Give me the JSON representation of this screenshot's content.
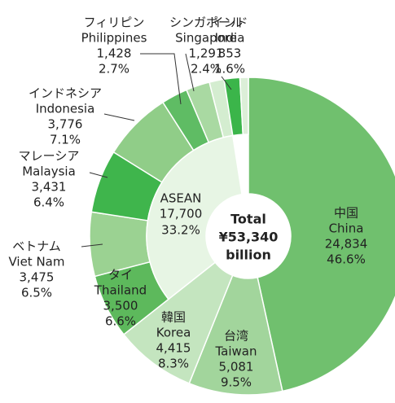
{
  "chart_data": {
    "type": "donut",
    "center_label": [
      "Total",
      "¥53,340",
      "billion"
    ],
    "categories_ja": [
      "中国",
      "台湾",
      "韓国",
      "タイ",
      "ベトナム",
      "マレーシア",
      "インドネシア",
      "フィリピン",
      "シンガポール",
      null,
      "インド",
      null
    ],
    "categories": [
      "China",
      "Taiwan",
      "Korea",
      "Thailand",
      "Viet Nam",
      "Malaysia",
      "Indonesia",
      "Philippines",
      "Singapore",
      null,
      "India",
      null
    ],
    "values": [
      24834,
      5081,
      4415,
      3500,
      3475,
      3431,
      3776,
      1428,
      1291,
      799,
      853,
      457
    ],
    "value_labels": [
      "24,834",
      "5,081",
      "4,415",
      "3,500",
      "3,475",
      "3,431",
      "3,776",
      "1,428",
      "1,291",
      null,
      "853",
      null
    ],
    "shares": [
      46.6,
      9.5,
      8.3,
      6.6,
      6.5,
      6.4,
      7.1,
      2.7,
      2.4,
      null,
      1.6,
      null
    ],
    "share_labels": [
      "46.6%",
      "9.5%",
      "8.3%",
      "6.6%",
      "6.5%",
      "6.4%",
      "7.1%",
      "2.7%",
      "2.4%",
      null,
      "1.6%",
      null
    ],
    "colors": [
      "#70c06e",
      "#a2d59c",
      "#c4e5bf",
      "#5db95c",
      "#9bd292",
      "#3fb54c",
      "#90cd88",
      "#5fbc64",
      "#a9d9a2",
      "#d4edd0",
      "#3bb54a",
      "#dcefd8"
    ],
    "inner": {
      "categories": [
        "ASEAN"
      ],
      "values": [
        17700
      ],
      "value_labels": [
        "17,700"
      ],
      "shares": [
        33.2
      ],
      "share_labels": [
        "33.2%"
      ],
      "color": "#e7f5e4"
    }
  }
}
